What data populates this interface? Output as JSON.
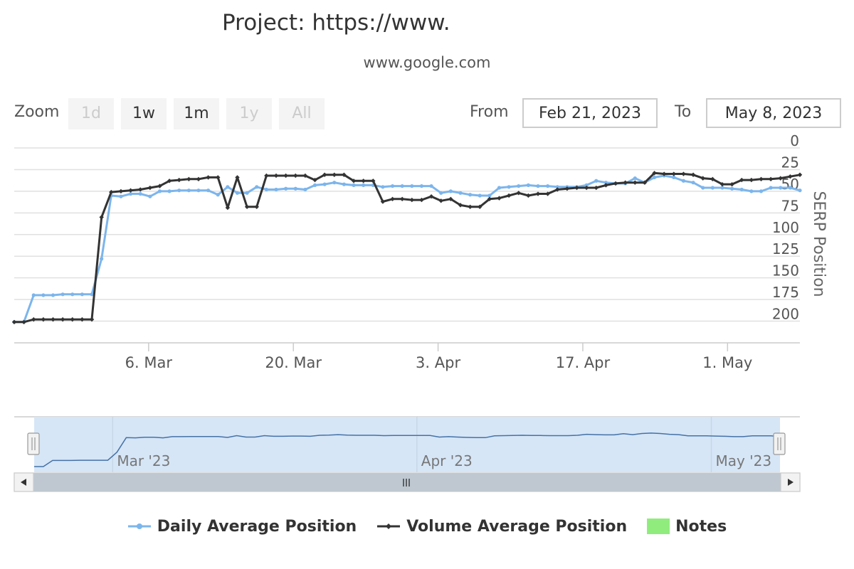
{
  "title": "Project: https://www.",
  "subtitle": "www.google.com",
  "range_selector": {
    "zoom_label": "Zoom",
    "buttons": [
      "1d",
      "1w",
      "1m",
      "1y",
      "All"
    ],
    "disabled": [
      true,
      false,
      false,
      true,
      true
    ],
    "from_label": "From",
    "from_value": "Feb 21, 2023",
    "to_label": "To",
    "to_value": "May 8, 2023"
  },
  "colors": {
    "daily": "#7cb5ec",
    "volume": "#333333",
    "notes": "#90ed7d",
    "navigator_fill": "#d6e6f7"
  },
  "chart_data": {
    "type": "line",
    "y_axis": {
      "title": "SERP Position",
      "reversed": true,
      "min": 0,
      "max": 225,
      "ticks": [
        0,
        25,
        50,
        75,
        100,
        125,
        150,
        175,
        200
      ]
    },
    "x_axis": {
      "type": "datetime",
      "start": "2023-02-21",
      "end": "2023-05-08",
      "tick_labels": [
        "6. Mar",
        "20. Mar",
        "3. Apr",
        "17. Apr",
        "1. May"
      ],
      "tick_dates": [
        "2023-03-06",
        "2023-03-20",
        "2023-04-03",
        "2023-04-17",
        "2023-05-01"
      ]
    },
    "legend_position": "bottom-center",
    "series": [
      {
        "name": "Daily Average Position",
        "values": [
          201,
          201,
          170,
          170,
          170,
          169,
          169,
          169,
          169,
          128,
          55,
          56,
          53,
          53,
          56,
          50,
          50,
          49,
          49,
          49,
          49,
          54,
          45,
          52,
          52,
          45,
          48,
          48,
          47,
          47,
          48,
          43,
          42,
          40,
          42,
          43,
          43,
          43,
          45,
          44,
          44,
          44,
          44,
          44,
          52,
          50,
          52,
          54,
          55,
          55,
          46,
          45,
          44,
          43,
          44,
          44,
          45,
          45,
          45,
          43,
          38,
          40,
          41,
          41,
          35,
          40,
          34,
          32,
          34,
          38,
          40,
          46,
          46,
          46,
          47,
          48,
          50,
          50,
          46,
          46,
          46,
          49
        ]
      },
      {
        "name": "Volume Average Position",
        "values": [
          201,
          201,
          198,
          198,
          198,
          198,
          198,
          198,
          198,
          80,
          51,
          50,
          49,
          48,
          46,
          44,
          38,
          37,
          36,
          36,
          34,
          34,
          69,
          34,
          68,
          68,
          32,
          32,
          32,
          32,
          32,
          37,
          31,
          31,
          31,
          38,
          38,
          38,
          62,
          59,
          59,
          60,
          60,
          56,
          61,
          59,
          66,
          68,
          68,
          59,
          58,
          55,
          52,
          55,
          53,
          53,
          48,
          47,
          46,
          46,
          46,
          43,
          41,
          40,
          40,
          40,
          29,
          30,
          30,
          30,
          31,
          35,
          36,
          42,
          42,
          37,
          37,
          36,
          36,
          35,
          33,
          31
        ]
      }
    ],
    "notes": {
      "name": "Notes"
    },
    "navigator": {
      "labels": [
        "Mar '23",
        "Apr '23",
        "May '23"
      ],
      "label_dates": [
        "2023-03-01",
        "2023-04-01",
        "2023-05-01"
      ]
    }
  }
}
